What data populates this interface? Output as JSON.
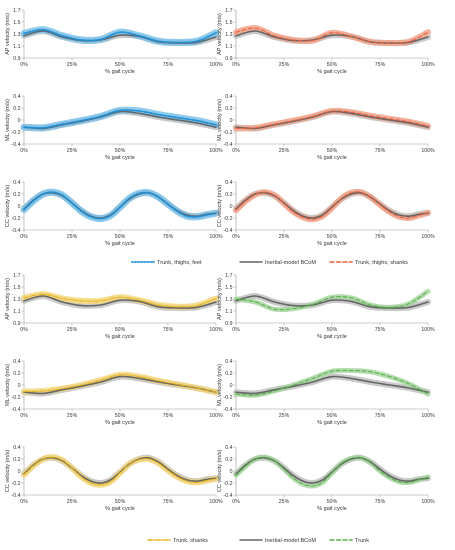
{
  "colors": {
    "reference": "#666666",
    "reference_band": "#bfbfbf",
    "blue": "#1f8fd6",
    "blue_band": "#7cc2ea",
    "orange": "#e8603c",
    "orange_band": "#f2a58c",
    "yellow": "#e8b21a",
    "yellow_band": "#f3d77d",
    "green": "#59b14f",
    "green_band": "#a8d6a0"
  },
  "legends": [
    {
      "items": [
        {
          "label": "Trunk, thighs, feet",
          "style": "dotted",
          "color": "#1f8fd6"
        },
        {
          "label": "Inertial-model BCoM",
          "style": "solid",
          "color": "#666666"
        },
        {
          "label": "Trunk, thighs, shanks",
          "style": "dashed",
          "color": "#e8603c"
        }
      ]
    },
    {
      "items": [
        {
          "label": "Trunk, shanks",
          "style": "dashdot",
          "color": "#e8b21a"
        },
        {
          "label": "Inertial-model BCoM",
          "style": "solid",
          "color": "#666666"
        },
        {
          "label": "Trunk",
          "style": "dashed",
          "color": "#59b14f"
        }
      ]
    }
  ],
  "chart_data": [
    {
      "type": "line",
      "xlabel": "% gait cycle",
      "ylabel": "AP velocity (m/s)",
      "xticks": [
        "0%",
        "25%",
        "50%",
        "75%",
        "100%"
      ],
      "ylim": [
        0.9,
        1.7
      ],
      "yticks": [
        "0.9",
        "1.1",
        "1.3",
        "1.5",
        "1.7"
      ],
      "x": [
        0,
        10,
        20,
        30,
        40,
        50,
        60,
        70,
        80,
        90,
        100
      ],
      "series": [
        {
          "name": "Inertial-model BCoM",
          "values": [
            1.27,
            1.35,
            1.25,
            1.19,
            1.2,
            1.28,
            1.26,
            1.17,
            1.15,
            1.16,
            1.25
          ]
        },
        {
          "name": "Trunk, thighs, feet",
          "values": [
            1.31,
            1.37,
            1.27,
            1.2,
            1.21,
            1.33,
            1.27,
            1.18,
            1.16,
            1.18,
            1.32
          ]
        }
      ]
    },
    {
      "type": "line",
      "xlabel": "% gait cycle",
      "ylabel": "AP velocity (m/s)",
      "xticks": [
        "0%",
        "25%",
        "50%",
        "75%",
        "100%"
      ],
      "ylim": [
        0.9,
        1.7
      ],
      "yticks": [
        "0.9",
        "1.1",
        "1.3",
        "1.5",
        "1.7"
      ],
      "x": [
        0,
        10,
        20,
        30,
        40,
        50,
        60,
        70,
        80,
        90,
        100
      ],
      "series": [
        {
          "name": "Inertial-model BCoM",
          "values": [
            1.27,
            1.35,
            1.25,
            1.19,
            1.2,
            1.28,
            1.26,
            1.17,
            1.15,
            1.16,
            1.25
          ]
        },
        {
          "name": "Trunk, thighs, shanks",
          "values": [
            1.33,
            1.4,
            1.27,
            1.2,
            1.19,
            1.32,
            1.26,
            1.17,
            1.15,
            1.17,
            1.33
          ]
        }
      ]
    },
    {
      "type": "line",
      "xlabel": "% gait cycle",
      "ylabel": "ML velocity (m/s)",
      "xticks": [
        "0%",
        "25%",
        "50%",
        "75%",
        "100%"
      ],
      "ylim": [
        -0.4,
        0.4
      ],
      "yticks": [
        "-0.4",
        "-0.2",
        "0",
        "0.2",
        "0.4"
      ],
      "x": [
        0,
        10,
        20,
        30,
        40,
        50,
        60,
        70,
        80,
        90,
        100
      ],
      "series": [
        {
          "name": "Inertial-model BCoM",
          "values": [
            -0.12,
            -0.14,
            -0.08,
            -0.02,
            0.05,
            0.14,
            0.11,
            0.05,
            0.0,
            -0.05,
            -0.12
          ]
        },
        {
          "name": "Trunk, thighs, feet",
          "values": [
            -0.12,
            -0.13,
            -0.07,
            -0.01,
            0.06,
            0.16,
            0.15,
            0.09,
            0.04,
            -0.01,
            -0.08
          ]
        }
      ]
    },
    {
      "type": "line",
      "xlabel": "% gait cycle",
      "ylabel": "ML velocity (m/s)",
      "xticks": [
        "0%",
        "25%",
        "50%",
        "75%",
        "100%"
      ],
      "ylim": [
        -0.4,
        0.4
      ],
      "yticks": [
        "-0.4",
        "-0.2",
        "0",
        "0.2",
        "0.4"
      ],
      "x": [
        0,
        10,
        20,
        30,
        40,
        50,
        60,
        70,
        80,
        90,
        100
      ],
      "series": [
        {
          "name": "Inertial-model BCoM",
          "values": [
            -0.12,
            -0.14,
            -0.08,
            -0.02,
            0.05,
            0.14,
            0.11,
            0.05,
            0.0,
            -0.05,
            -0.12
          ]
        },
        {
          "name": "Trunk, thighs, shanks",
          "values": [
            -0.14,
            -0.13,
            -0.07,
            -0.01,
            0.06,
            0.15,
            0.13,
            0.07,
            0.02,
            -0.03,
            -0.1
          ]
        }
      ]
    },
    {
      "type": "line",
      "xlabel": "% gait cycle",
      "ylabel": "CC velocity (m/s)",
      "xticks": [
        "0%",
        "25%",
        "50%",
        "75%",
        "100%"
      ],
      "ylim": [
        -0.4,
        0.4
      ],
      "yticks": [
        "-0.4",
        "-0.2",
        "0",
        "0.2",
        "0.4"
      ],
      "x": [
        0,
        5,
        10,
        15,
        20,
        25,
        30,
        35,
        40,
        45,
        50,
        55,
        60,
        65,
        70,
        75,
        80,
        85,
        90,
        95,
        100
      ],
      "series": [
        {
          "name": "Inertial-model BCoM",
          "values": [
            -0.05,
            0.1,
            0.2,
            0.22,
            0.17,
            0.05,
            -0.08,
            -0.17,
            -0.2,
            -0.15,
            -0.02,
            0.12,
            0.2,
            0.22,
            0.15,
            0.03,
            -0.08,
            -0.15,
            -0.17,
            -0.14,
            -0.12
          ]
        },
        {
          "name": "Trunk, thighs, feet",
          "values": [
            -0.06,
            0.09,
            0.2,
            0.23,
            0.18,
            0.05,
            -0.09,
            -0.18,
            -0.21,
            -0.16,
            -0.02,
            0.13,
            0.21,
            0.22,
            0.15,
            0.03,
            -0.09,
            -0.17,
            -0.18,
            -0.15,
            -0.12
          ]
        }
      ]
    },
    {
      "type": "line",
      "xlabel": "% gait cycle",
      "ylabel": "CC velocity (m/s)",
      "xticks": [
        "0%",
        "25%",
        "50%",
        "75%",
        "100%"
      ],
      "ylim": [
        -0.4,
        0.4
      ],
      "yticks": [
        "-0.4",
        "-0.2",
        "0",
        "0.2",
        "0.4"
      ],
      "x": [
        0,
        5,
        10,
        15,
        20,
        25,
        30,
        35,
        40,
        45,
        50,
        55,
        60,
        65,
        70,
        75,
        80,
        85,
        90,
        95,
        100
      ],
      "series": [
        {
          "name": "Inertial-model BCoM",
          "values": [
            -0.05,
            0.1,
            0.2,
            0.22,
            0.17,
            0.05,
            -0.08,
            -0.17,
            -0.2,
            -0.15,
            -0.02,
            0.12,
            0.2,
            0.22,
            0.15,
            0.03,
            -0.08,
            -0.15,
            -0.17,
            -0.14,
            -0.12
          ]
        },
        {
          "name": "Trunk, thighs, shanks",
          "values": [
            -0.07,
            0.08,
            0.19,
            0.23,
            0.18,
            0.04,
            -0.1,
            -0.19,
            -0.22,
            -0.17,
            -0.03,
            0.13,
            0.22,
            0.23,
            0.15,
            0.02,
            -0.1,
            -0.18,
            -0.2,
            -0.16,
            -0.11
          ]
        }
      ]
    },
    {
      "type": "line",
      "xlabel": "% gait cycle",
      "ylabel": "AP velocity (m/s)",
      "xticks": [
        "0%",
        "25%",
        "50%",
        "75%",
        "100%"
      ],
      "ylim": [
        0.9,
        1.7
      ],
      "yticks": [
        "0.9",
        "1.1",
        "1.3",
        "1.5",
        "1.7"
      ],
      "x": [
        0,
        10,
        20,
        30,
        40,
        50,
        60,
        70,
        80,
        90,
        100
      ],
      "series": [
        {
          "name": "Inertial-model BCoM",
          "values": [
            1.27,
            1.35,
            1.25,
            1.19,
            1.2,
            1.28,
            1.26,
            1.17,
            1.15,
            1.16,
            1.25
          ]
        },
        {
          "name": "Trunk, shanks",
          "values": [
            1.32,
            1.38,
            1.31,
            1.27,
            1.27,
            1.33,
            1.28,
            1.2,
            1.17,
            1.19,
            1.31
          ]
        }
      ]
    },
    {
      "type": "line",
      "xlabel": "% gait cycle",
      "ylabel": "AP velocity (m/s)",
      "xticks": [
        "0%",
        "25%",
        "50%",
        "75%",
        "100%"
      ],
      "ylim": [
        0.9,
        1.7
      ],
      "yticks": [
        "0.9",
        "1.1",
        "1.3",
        "1.5",
        "1.7"
      ],
      "x": [
        0,
        10,
        20,
        30,
        40,
        50,
        60,
        70,
        80,
        90,
        100
      ],
      "series": [
        {
          "name": "Inertial-model BCoM",
          "values": [
            1.27,
            1.35,
            1.25,
            1.19,
            1.2,
            1.28,
            1.26,
            1.17,
            1.15,
            1.16,
            1.25
          ]
        },
        {
          "name": "Trunk",
          "values": [
            1.3,
            1.25,
            1.13,
            1.14,
            1.21,
            1.33,
            1.32,
            1.2,
            1.16,
            1.22,
            1.43
          ]
        }
      ]
    },
    {
      "type": "line",
      "xlabel": "% gait cycle",
      "ylabel": "ML velocity (m/s)",
      "xticks": [
        "0%",
        "25%",
        "50%",
        "75%",
        "100%"
      ],
      "ylim": [
        -0.4,
        0.4
      ],
      "yticks": [
        "-0.4",
        "-0.2",
        "0",
        "0.2",
        "0.4"
      ],
      "x": [
        0,
        10,
        20,
        30,
        40,
        50,
        60,
        70,
        80,
        90,
        100
      ],
      "series": [
        {
          "name": "Inertial-model BCoM",
          "values": [
            -0.12,
            -0.14,
            -0.08,
            -0.02,
            0.05,
            0.14,
            0.11,
            0.05,
            0.0,
            -0.05,
            -0.12
          ]
        },
        {
          "name": "Trunk, shanks",
          "values": [
            -0.11,
            -0.1,
            -0.06,
            0.0,
            0.08,
            0.17,
            0.14,
            0.07,
            0.01,
            -0.05,
            -0.12
          ]
        }
      ]
    },
    {
      "type": "line",
      "xlabel": "% gait cycle",
      "ylabel": "ML velocity (m/s)",
      "xticks": [
        "0%",
        "25%",
        "50%",
        "75%",
        "100%"
      ],
      "ylim": [
        -0.4,
        0.4
      ],
      "yticks": [
        "-0.4",
        "-0.2",
        "0",
        "0.2",
        "0.4"
      ],
      "x": [
        0,
        10,
        20,
        30,
        40,
        50,
        60,
        70,
        80,
        90,
        100
      ],
      "series": [
        {
          "name": "Inertial-model BCoM",
          "values": [
            -0.12,
            -0.14,
            -0.08,
            -0.02,
            0.05,
            0.14,
            0.11,
            0.05,
            0.0,
            -0.05,
            -0.12
          ]
        },
        {
          "name": "Trunk",
          "values": [
            -0.15,
            -0.17,
            -0.1,
            0.0,
            0.11,
            0.23,
            0.24,
            0.22,
            0.14,
            0.02,
            -0.15
          ]
        }
      ]
    },
    {
      "type": "line",
      "xlabel": "% gait cycle",
      "ylabel": "CC velocity (m/s)",
      "xticks": [
        "0%",
        "25%",
        "50%",
        "75%",
        "100%"
      ],
      "ylim": [
        -0.4,
        0.4
      ],
      "yticks": [
        "-0.4",
        "-0.2",
        "0",
        "0.2",
        "0.4"
      ],
      "x": [
        0,
        5,
        10,
        15,
        20,
        25,
        30,
        35,
        40,
        45,
        50,
        55,
        60,
        65,
        70,
        75,
        80,
        85,
        90,
        95,
        100
      ],
      "series": [
        {
          "name": "Inertial-model BCoM",
          "values": [
            -0.05,
            0.1,
            0.2,
            0.22,
            0.17,
            0.05,
            -0.08,
            -0.17,
            -0.2,
            -0.15,
            -0.02,
            0.12,
            0.2,
            0.22,
            0.15,
            0.03,
            -0.08,
            -0.15,
            -0.17,
            -0.14,
            -0.12
          ]
        },
        {
          "name": "Trunk, shanks",
          "values": [
            -0.06,
            0.09,
            0.2,
            0.23,
            0.18,
            0.05,
            -0.1,
            -0.2,
            -0.23,
            -0.18,
            -0.03,
            0.12,
            0.19,
            0.2,
            0.13,
            0.01,
            -0.1,
            -0.17,
            -0.19,
            -0.16,
            -0.13
          ]
        }
      ]
    },
    {
      "type": "line",
      "xlabel": "% gait cycle",
      "ylabel": "CC velocity (m/s)",
      "xticks": [
        "0%",
        "25%",
        "50%",
        "75%",
        "100%"
      ],
      "ylim": [
        -0.4,
        0.4
      ],
      "yticks": [
        "-0.4",
        "-0.2",
        "0",
        "0.2",
        "0.4"
      ],
      "x": [
        0,
        5,
        10,
        15,
        20,
        25,
        30,
        35,
        40,
        45,
        50,
        55,
        60,
        65,
        70,
        75,
        80,
        85,
        90,
        95,
        100
      ],
      "series": [
        {
          "name": "Inertial-model BCoM",
          "values": [
            -0.05,
            0.1,
            0.2,
            0.22,
            0.17,
            0.05,
            -0.08,
            -0.17,
            -0.2,
            -0.15,
            -0.02,
            0.12,
            0.2,
            0.22,
            0.15,
            0.03,
            -0.08,
            -0.15,
            -0.17,
            -0.14,
            -0.12
          ]
        },
        {
          "name": "Trunk",
          "values": [
            -0.07,
            0.08,
            0.2,
            0.23,
            0.17,
            0.03,
            -0.12,
            -0.22,
            -0.25,
            -0.19,
            -0.03,
            0.13,
            0.21,
            0.22,
            0.14,
            0.0,
            -0.11,
            -0.18,
            -0.19,
            -0.15,
            -0.1
          ]
        }
      ]
    }
  ]
}
